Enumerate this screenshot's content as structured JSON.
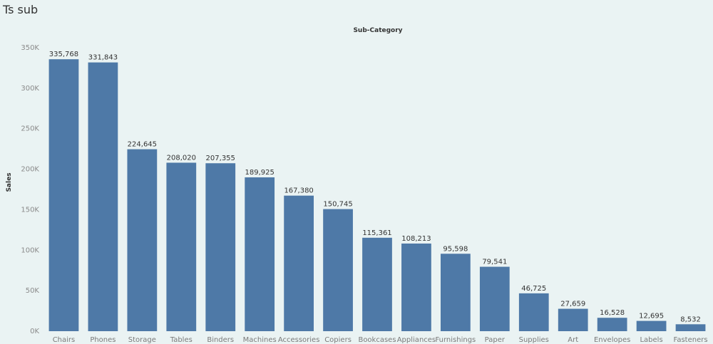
{
  "sheet": {
    "title": "Ts sub"
  },
  "colors": {
    "bar": "#4e79a7",
    "background": "#eaf3f3"
  },
  "chart_data": {
    "type": "bar",
    "column_header": "Sub-Category",
    "ylabel": "Sales",
    "ylim": [
      0,
      350000
    ],
    "yticks": [
      0,
      50000,
      100000,
      150000,
      200000,
      250000,
      300000,
      350000
    ],
    "ytick_labels": [
      "0K",
      "50K",
      "100K",
      "150K",
      "200K",
      "250K",
      "300K",
      "350K"
    ],
    "grid": false,
    "categories": [
      "Chairs",
      "Phones",
      "Storage",
      "Tables",
      "Binders",
      "Machines",
      "Accessories",
      "Copiers",
      "Bookcases",
      "Appliances",
      "Furnishings",
      "Paper",
      "Supplies",
      "Art",
      "Envelopes",
      "Labels",
      "Fasteners"
    ],
    "values": [
      335768,
      331843,
      224645,
      208020,
      207355,
      189925,
      167380,
      150745,
      115361,
      108213,
      95598,
      79541,
      46725,
      27659,
      16528,
      12695,
      8532
    ],
    "value_labels": [
      "335,768",
      "331,843",
      "224,645",
      "208,020",
      "207,355",
      "189,925",
      "167,380",
      "150,745",
      "115,361",
      "108,213",
      "95,598",
      "79,541",
      "46,725",
      "27,659",
      "16,528",
      "12,695",
      "8,532"
    ]
  }
}
